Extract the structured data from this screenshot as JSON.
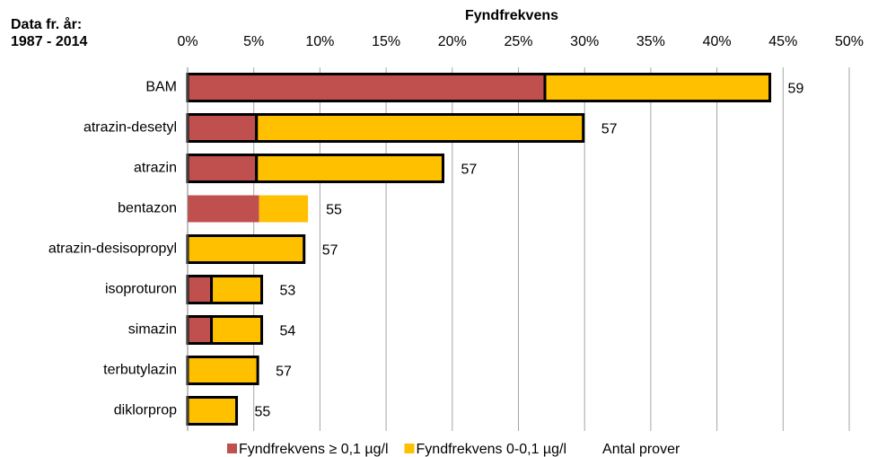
{
  "chart_data": {
    "type": "stacked_barh",
    "title": "Fyndfrekvens",
    "note_lines": [
      "Data fr. år:",
      "1987 - 2014"
    ],
    "categories": [
      "BAM",
      "atrazin-desetyl",
      "atrazin",
      "bentazon",
      "atrazin-desisopropyl",
      "isoproturon",
      "simazin",
      "terbutylazin",
      "diklorprop"
    ],
    "series": [
      {
        "name": "Fyndfrekvens ≥ 0,1 µg/l",
        "color": "#c0504d",
        "values": [
          27.0,
          5.2,
          5.2,
          5.4,
          0,
          1.8,
          1.8,
          0,
          0
        ]
      },
      {
        "name": "Fyndfrekvens 0-0,1 µg/l",
        "color": "#ffc000",
        "values": [
          17.0,
          24.7,
          14.1,
          3.7,
          8.8,
          3.8,
          3.8,
          5.3,
          3.7
        ]
      }
    ],
    "counts": {
      "name": "Antal prover",
      "values": [
        59,
        57,
        57,
        55,
        57,
        53,
        54,
        57,
        55
      ]
    },
    "outlined": [
      true,
      true,
      true,
      false,
      true,
      true,
      true,
      true,
      true
    ],
    "xlim": [
      0,
      50
    ],
    "xticks": [
      {
        "value": 0,
        "label": "0%"
      },
      {
        "value": 5,
        "label": "5%"
      },
      {
        "value": 10,
        "label": "10%"
      },
      {
        "value": 15,
        "label": "15%"
      },
      {
        "value": 20,
        "label": "20%"
      },
      {
        "value": 25,
        "label": "25%"
      },
      {
        "value": 30,
        "label": "30%"
      },
      {
        "value": 35,
        "label": "35%"
      },
      {
        "value": 40,
        "label": "40%"
      },
      {
        "value": 45,
        "label": "45%"
      },
      {
        "value": 50,
        "label": "50%"
      }
    ],
    "grid": true
  }
}
